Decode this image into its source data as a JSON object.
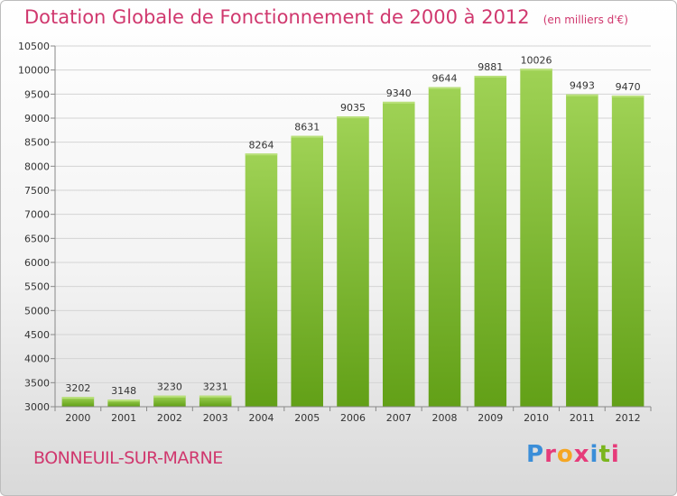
{
  "header": {
    "title": "Dotation Globale de Fonctionnement de 2000 à 2012",
    "unit": "(en milliers d'€)"
  },
  "footer": {
    "commune": "BONNEUIL-SUR-MARNE",
    "logo_letters": [
      "P",
      "r",
      "o",
      "x",
      "i",
      "t",
      "i"
    ],
    "logo_colors": [
      "#3b8ed8",
      "#e63b7a",
      "#f5a623",
      "#e63b7a",
      "#3b8ed8",
      "#7ab51d",
      "#e63b7a"
    ]
  },
  "chart_data": {
    "type": "bar",
    "title": "Dotation Globale de Fonctionnement de 2000 à 2012",
    "categories": [
      "2000",
      "2001",
      "2002",
      "2003",
      "2004",
      "2005",
      "2006",
      "2007",
      "2008",
      "2009",
      "2010",
      "2011",
      "2012"
    ],
    "values": [
      3202,
      3148,
      3230,
      3231,
      8264,
      8631,
      9035,
      9340,
      9644,
      9881,
      10026,
      9493,
      9470
    ],
    "ylim": [
      3000,
      10500
    ],
    "yticks": [
      3000,
      3500,
      4000,
      4500,
      5000,
      5500,
      6000,
      6500,
      7000,
      7500,
      8000,
      8500,
      9000,
      9500,
      10000,
      10500
    ],
    "grid": true,
    "bar_color": "#82bb35"
  }
}
